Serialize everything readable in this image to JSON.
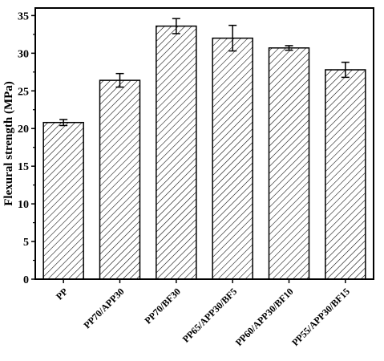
{
  "chart_data": {
    "type": "bar",
    "title": "",
    "xlabel": "",
    "ylabel": "Flexural strength (MPa)",
    "categories": [
      "PP",
      "PP70/APP30",
      "PP70/BF30",
      "PP65/APP30/BF5",
      "PP60/APP30/BF10",
      "PP55/APP30/BF15"
    ],
    "values": [
      20.8,
      26.4,
      33.6,
      32.0,
      30.7,
      27.8
    ],
    "errors": [
      0.4,
      0.9,
      1.0,
      1.7,
      0.3,
      1.0
    ],
    "ylim": [
      0,
      36
    ],
    "yticks": [
      0,
      5,
      10,
      15,
      20,
      25,
      30,
      35
    ],
    "grid": false,
    "bar_fill": "diagonal-hatch",
    "colors": {
      "bar_edge": "#000000",
      "hatch": "#000000",
      "background": "#ffffff"
    }
  }
}
